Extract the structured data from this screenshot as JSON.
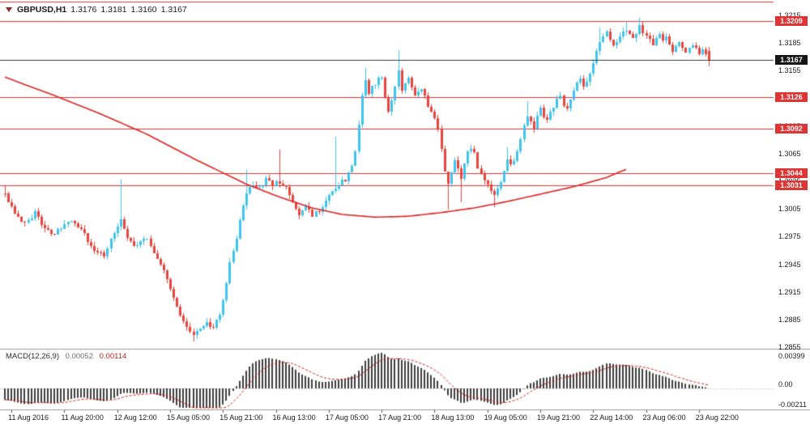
{
  "header": {
    "symbol": "GBPUSD,H1",
    "open": "1.3176",
    "high": "1.3181",
    "low": "1.3160",
    "close": "1.3167"
  },
  "macd_panel": {
    "label": "MACD(12,26,9)",
    "value_main": "0.00052",
    "value_signal": "0.00114"
  },
  "colors": {
    "bull": "#3fc4ee",
    "bear": "#ea453c",
    "level_line": "#df3434",
    "ma_line": "#e02525",
    "signal_line": "#d42222",
    "histogram": "#3f3f3f",
    "current_price_line": "#3c3c3c",
    "badge_bg": "#df3434",
    "current_badge_bg": "#151515",
    "separator": "#9a9a9a",
    "zero_line": "#aaaaaa",
    "tick_mark": "#555555"
  },
  "chart_data": {
    "type": "candlestick",
    "symbol": "GBPUSD",
    "timeframe": "H1",
    "title": "GBPUSD,H1",
    "bars": 214,
    "ylim": [
      1.2855,
      1.3215
    ],
    "y_tick_step": 0.003,
    "price_ticks": [
      "1.3215",
      "1.3185",
      "1.3155",
      "1.3125",
      "1.3095",
      "1.3065",
      "1.3035",
      "1.3005",
      "1.2975",
      "1.2945",
      "1.2915",
      "1.2885",
      "1.2855"
    ],
    "time_labels": [
      {
        "bar": 2,
        "text": "11 Aug 2016"
      },
      {
        "bar": 18,
        "text": "11 Aug 20:00"
      },
      {
        "bar": 34,
        "text": "12 Aug 12:00"
      },
      {
        "bar": 50,
        "text": "15 Aug 05:00"
      },
      {
        "bar": 66,
        "text": "15 Aug 21:00"
      },
      {
        "bar": 82,
        "text": "16 Aug 13:00"
      },
      {
        "bar": 98,
        "text": "17 Aug 05:00"
      },
      {
        "bar": 114,
        "text": "17 Aug 21:00"
      },
      {
        "bar": 130,
        "text": "18 Aug 13:00"
      },
      {
        "bar": 146,
        "text": "19 Aug 05:00"
      },
      {
        "bar": 162,
        "text": "19 Aug 21:00"
      },
      {
        "bar": 178,
        "text": "22 Aug 14:00"
      },
      {
        "bar": 194,
        "text": "23 Aug 06:00"
      },
      {
        "bar": 210,
        "text": "23 Aug 22:00"
      }
    ],
    "ohlc_last": {
      "open": 1.3176,
      "high": 1.3181,
      "low": 1.316,
      "close": 1.3167
    },
    "current_price": {
      "value": 1.3167,
      "label": "1.3167"
    },
    "level_lines": [
      {
        "value": 1.323,
        "label": ""
      },
      {
        "value": 1.3209,
        "label": "1.3209"
      },
      {
        "value": 1.3126,
        "label": "1.3126"
      },
      {
        "value": 1.3092,
        "label": "1.3092"
      },
      {
        "value": 1.3044,
        "label": "1.3044"
      },
      {
        "value": 1.3031,
        "label": "1.3031"
      }
    ],
    "price_path": [
      [
        0,
        1.3022
      ],
      [
        2,
        1.3008
      ],
      [
        4,
        1.2996
      ],
      [
        6,
        1.299
      ],
      [
        9,
        1.3
      ],
      [
        12,
        1.2985
      ],
      [
        15,
        1.2978
      ],
      [
        18,
        1.2988
      ],
      [
        21,
        1.2992
      ],
      [
        24,
        1.2976
      ],
      [
        27,
        1.2962
      ],
      [
        30,
        1.2956
      ],
      [
        33,
        1.2978
      ],
      [
        35,
        1.2994
      ],
      [
        37,
        1.2974
      ],
      [
        39,
        1.2963
      ],
      [
        41,
        1.297
      ],
      [
        43,
        1.2974
      ],
      [
        45,
        1.2958
      ],
      [
        47,
        1.2946
      ],
      [
        49,
        1.293
      ],
      [
        51,
        1.2908
      ],
      [
        53,
        1.2888
      ],
      [
        55,
        1.2876
      ],
      [
        57,
        1.2868
      ],
      [
        59,
        1.2874
      ],
      [
        61,
        1.2884
      ],
      [
        63,
        1.2874
      ],
      [
        65,
        1.289
      ],
      [
        66,
        1.2905
      ],
      [
        67,
        1.2925
      ],
      [
        68,
        1.2945
      ],
      [
        69,
        1.2962
      ],
      [
        70,
        1.2975
      ],
      [
        71,
        1.299
      ],
      [
        72,
        1.3008
      ],
      [
        73,
        1.3024
      ],
      [
        75,
        1.3032
      ],
      [
        77,
        1.3026
      ],
      [
        79,
        1.3036
      ],
      [
        81,
        1.303
      ],
      [
        83,
        1.3034
      ],
      [
        85,
        1.3026
      ],
      [
        87,
        1.3014
      ],
      [
        89,
        1.2999
      ],
      [
        91,
        1.3008
      ],
      [
        93,
        1.2997
      ],
      [
        95,
        1.3004
      ],
      [
        97,
        1.3012
      ],
      [
        99,
        1.3024
      ],
      [
        101,
        1.3032
      ],
      [
        103,
        1.3038
      ],
      [
        105,
        1.3052
      ],
      [
        106,
        1.3068
      ],
      [
        107,
        1.3098
      ],
      [
        108,
        1.3128
      ],
      [
        109,
        1.3147
      ],
      [
        110,
        1.3132
      ],
      [
        112,
        1.314
      ],
      [
        114,
        1.315
      ],
      [
        115,
        1.3128
      ],
      [
        116,
        1.3112
      ],
      [
        118,
        1.3138
      ],
      [
        119,
        1.3155
      ],
      [
        120,
        1.3136
      ],
      [
        122,
        1.3148
      ],
      [
        124,
        1.3128
      ],
      [
        126,
        1.3134
      ],
      [
        128,
        1.3118
      ],
      [
        130,
        1.3104
      ],
      [
        131,
        1.309
      ],
      [
        132,
        1.3068
      ],
      [
        133,
        1.3048
      ],
      [
        134,
        1.3032
      ],
      [
        135,
        1.3042
      ],
      [
        136,
        1.3056
      ],
      [
        137,
        1.3046
      ],
      [
        138,
        1.3038
      ],
      [
        139,
        1.3052
      ],
      [
        140,
        1.3066
      ],
      [
        141,
        1.3072
      ],
      [
        142,
        1.3064
      ],
      [
        143,
        1.3052
      ],
      [
        144,
        1.3044
      ],
      [
        145,
        1.3036
      ],
      [
        146,
        1.303
      ],
      [
        147,
        1.3024
      ],
      [
        148,
        1.302
      ],
      [
        149,
        1.3028
      ],
      [
        150,
        1.3036
      ],
      [
        151,
        1.3046
      ],
      [
        152,
        1.306
      ],
      [
        153,
        1.3054
      ],
      [
        154,
        1.3058
      ],
      [
        155,
        1.3068
      ],
      [
        156,
        1.3082
      ],
      [
        157,
        1.3094
      ],
      [
        158,
        1.3106
      ],
      [
        159,
        1.3098
      ],
      [
        160,
        1.3094
      ],
      [
        161,
        1.3104
      ],
      [
        162,
        1.3112
      ],
      [
        163,
        1.3106
      ],
      [
        164,
        1.31
      ],
      [
        165,
        1.3108
      ],
      [
        166,
        1.3116
      ],
      [
        167,
        1.3122
      ],
      [
        168,
        1.3126
      ],
      [
        169,
        1.3118
      ],
      [
        170,
        1.3114
      ],
      [
        171,
        1.3124
      ],
      [
        172,
        1.3134
      ],
      [
        173,
        1.314
      ],
      [
        174,
        1.3146
      ],
      [
        175,
        1.3138
      ],
      [
        176,
        1.3142
      ],
      [
        177,
        1.3152
      ],
      [
        178,
        1.3162
      ],
      [
        179,
        1.3174
      ],
      [
        180,
        1.3186
      ],
      [
        181,
        1.3192
      ],
      [
        182,
        1.3196
      ],
      [
        183,
        1.3188
      ],
      [
        184,
        1.318
      ],
      [
        185,
        1.3186
      ],
      [
        186,
        1.3192
      ],
      [
        187,
        1.3196
      ],
      [
        188,
        1.32
      ],
      [
        189,
        1.3194
      ],
      [
        190,
        1.319
      ],
      [
        191,
        1.3196
      ],
      [
        192,
        1.3202
      ],
      [
        193,
        1.3198
      ],
      [
        194,
        1.3194
      ],
      [
        195,
        1.3188
      ],
      [
        196,
        1.3184
      ],
      [
        197,
        1.319
      ],
      [
        198,
        1.3194
      ],
      [
        199,
        1.3188
      ],
      [
        200,
        1.319
      ],
      [
        201,
        1.3184
      ],
      [
        202,
        1.3178
      ],
      [
        203,
        1.3182
      ],
      [
        204,
        1.3186
      ],
      [
        205,
        1.3178
      ],
      [
        206,
        1.3174
      ],
      [
        207,
        1.318
      ],
      [
        208,
        1.3184
      ],
      [
        209,
        1.3178
      ],
      [
        210,
        1.3172
      ],
      [
        211,
        1.3176
      ],
      [
        212,
        1.3175
      ],
      [
        213,
        1.3167
      ]
    ],
    "spikes": [
      {
        "bar": 0,
        "high": 1.303
      },
      {
        "bar": 35,
        "high": 1.3037
      },
      {
        "bar": 57,
        "low": 1.2861
      },
      {
        "bar": 73,
        "high": 1.3047
      },
      {
        "bar": 83,
        "high": 1.3069
      },
      {
        "bar": 100,
        "high": 1.3083
      },
      {
        "bar": 109,
        "high": 1.3158
      },
      {
        "bar": 119,
        "high": 1.3177
      },
      {
        "bar": 134,
        "low": 1.3004
      },
      {
        "bar": 138,
        "low": 1.3012
      },
      {
        "bar": 148,
        "low": 1.3007
      },
      {
        "bar": 152,
        "high": 1.3072
      },
      {
        "bar": 158,
        "high": 1.3122
      },
      {
        "bar": 180,
        "high": 1.3202
      },
      {
        "bar": 188,
        "high": 1.3208
      },
      {
        "bar": 192,
        "high": 1.3212
      }
    ],
    "ma_path": [
      [
        0,
        1.3148
      ],
      [
        15,
        1.3128
      ],
      [
        29,
        1.3108
      ],
      [
        43,
        1.3086
      ],
      [
        58,
        1.3058
      ],
      [
        73,
        1.3032
      ],
      [
        83,
        1.3018
      ],
      [
        93,
        1.3006
      ],
      [
        102,
        1.2999
      ],
      [
        112,
        1.2996
      ],
      [
        122,
        1.2997
      ],
      [
        132,
        1.3001
      ],
      [
        142,
        1.3006
      ],
      [
        152,
        1.3013
      ],
      [
        162,
        1.3021
      ],
      [
        172,
        1.3029
      ],
      [
        182,
        1.3039
      ],
      [
        188,
        1.3048
      ]
    ],
    "macd": {
      "params": [
        12,
        26,
        9
      ],
      "last_main": 0.00052,
      "last_signal": 0.00114,
      "axis_ticks": [
        {
          "label": "0.00399",
          "pos": "top"
        },
        {
          "label": "0.00",
          "pos": "zero"
        },
        {
          "label": "-0.00211",
          "pos": "bottom"
        }
      ]
    }
  }
}
